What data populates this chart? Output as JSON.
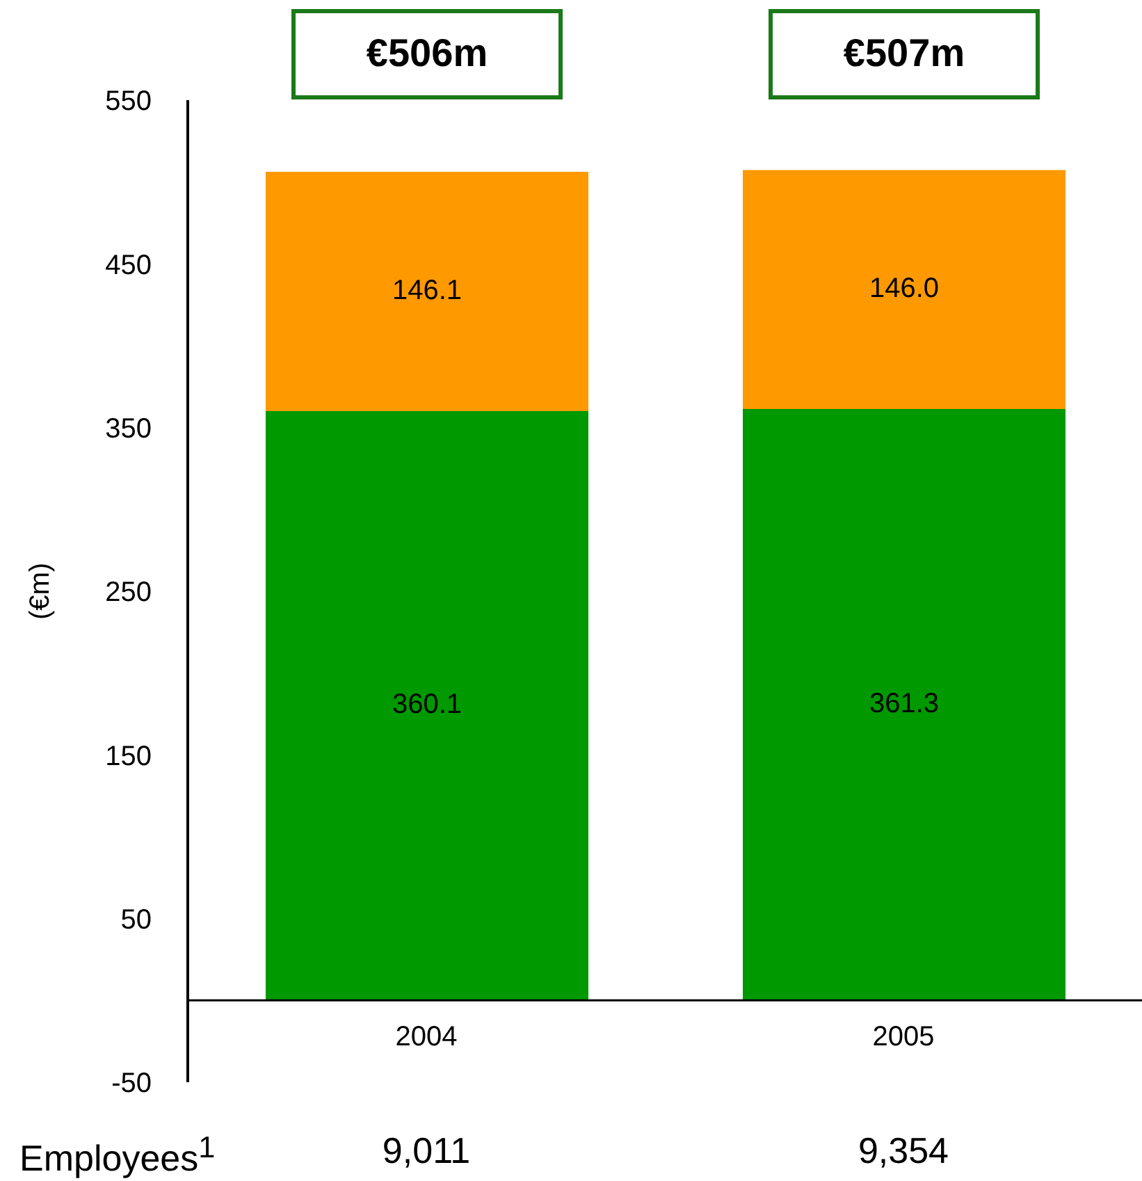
{
  "chart_data": {
    "type": "bar",
    "stacked": true,
    "categories": [
      "2004",
      "2005"
    ],
    "series": [
      {
        "color": "#009900",
        "values": [
          360.1,
          361.3
        ],
        "value_labels": [
          "360.1",
          "361.3"
        ]
      },
      {
        "color": "#ff9900",
        "values": [
          146.1,
          146.0
        ],
        "value_labels": [
          "146.1",
          "146.0"
        ]
      }
    ],
    "ylabel": "(€m)",
    "ylim": [
      -50,
      550
    ],
    "yticks": [
      -50,
      50,
      150,
      250,
      350,
      450,
      550
    ],
    "totals": [
      "€506m",
      "€507m"
    ],
    "grid": false,
    "legend": false,
    "annotations": [
      "Employees$^{1}$",
      "9,011",
      "9,354"
    ]
  }
}
